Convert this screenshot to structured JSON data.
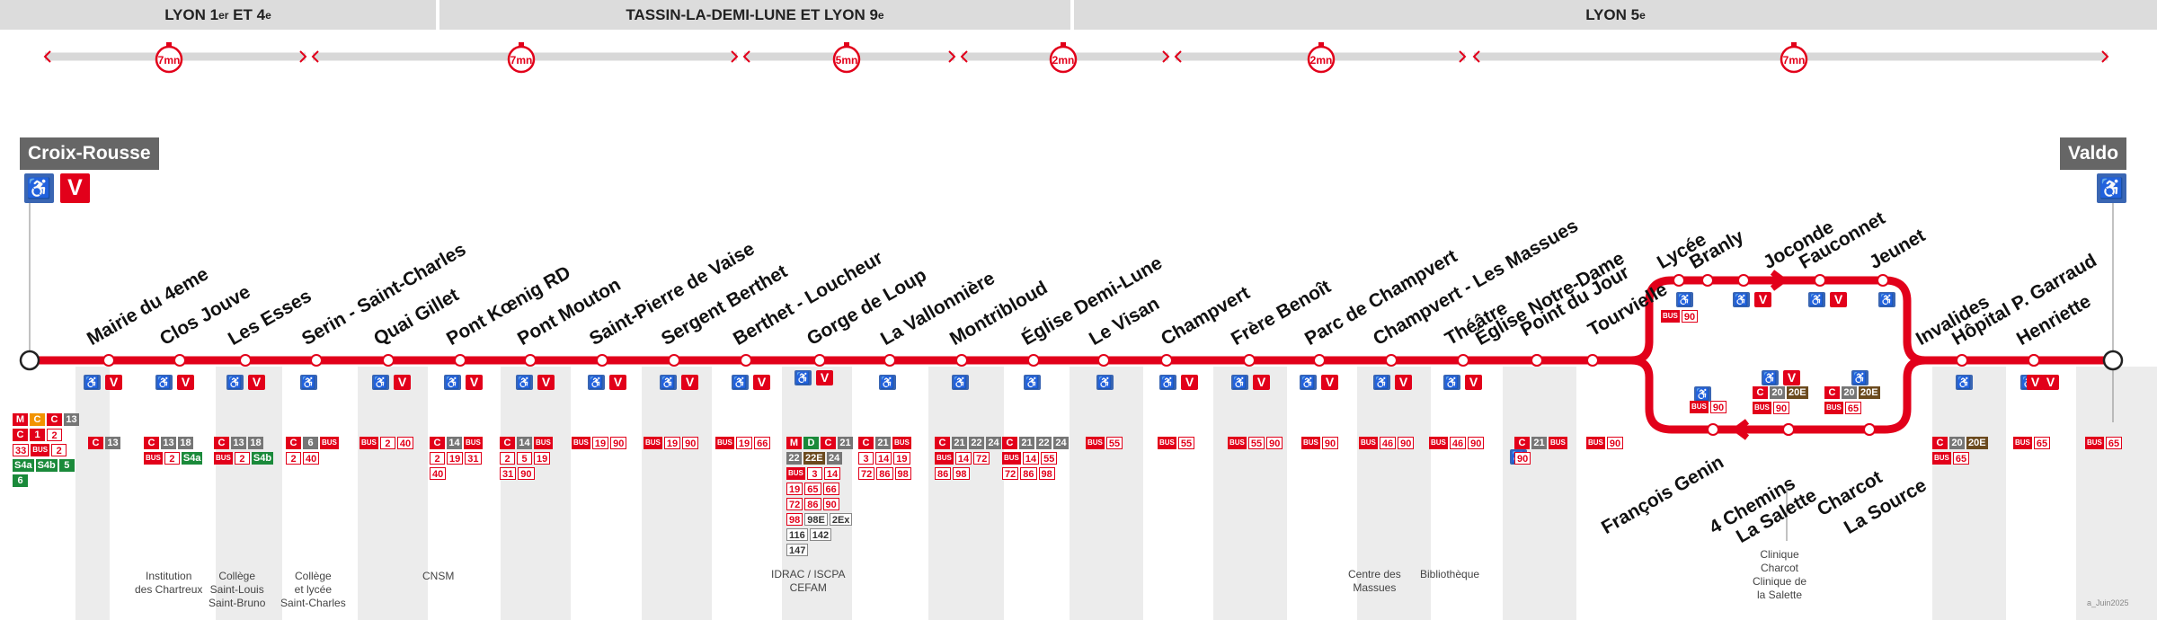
{
  "zones": [
    {
      "label": "LYON 1",
      "sup1": "er",
      "mid": "ET",
      "sup2": "e"
    },
    {
      "label": "TASSIN-LA-DEMI-LUNE ET LYON 9",
      "sup": "e"
    },
    {
      "label": "LYON 5",
      "sup": "e"
    }
  ],
  "travel_times": [
    "7mn",
    "7mn",
    "5mn",
    "2mn",
    "2mn",
    "7mn"
  ],
  "termini": {
    "start": "Croix-Rousse",
    "end": "Valdo"
  },
  "stops": [
    {
      "name": "Mairie du 4eme",
      "pmr": true,
      "velov": true
    },
    {
      "name": "Clos Jouve",
      "pmr": true,
      "velov": true
    },
    {
      "name": "Les Esses",
      "pmr": true,
      "velov": true
    },
    {
      "name": "Serin - Saint-Charles",
      "pmr": true,
      "velov": false
    },
    {
      "name": "Quai Gillet",
      "pmr": true,
      "velov": true
    },
    {
      "name": "Pont Kœnig RD",
      "pmr": true,
      "velov": true
    },
    {
      "name": "Pont Mouton",
      "pmr": true,
      "velov": true
    },
    {
      "name": "Saint-Pierre de Vaise",
      "pmr": true,
      "velov": true
    },
    {
      "name": "Sergent Berthet",
      "pmr": true,
      "velov": true
    },
    {
      "name": "Berthet - Loucheur",
      "pmr": true,
      "velov": true
    },
    {
      "name": "Gorge de Loup",
      "pmr": true,
      "velov": true
    },
    {
      "name": "La Vallonnière",
      "pmr": true,
      "velov": false
    },
    {
      "name": "Montribloud",
      "pmr": true,
      "velov": false
    },
    {
      "name": "Église Demi-Lune",
      "pmr": true,
      "velov": false
    },
    {
      "name": "Le Visan",
      "pmr": true,
      "velov": false
    },
    {
      "name": "Champvert",
      "pmr": true,
      "velov": true
    },
    {
      "name": "Frère Benoît",
      "pmr": true,
      "velov": true
    },
    {
      "name": "Parc de Champvert",
      "pmr": true,
      "velov": true
    },
    {
      "name": "Champvert - Les Massues",
      "pmr": true,
      "velov": true
    },
    {
      "name": "Théâtre",
      "pmr": true,
      "velov": true
    },
    {
      "name": "Église Notre-Dame",
      "pmr": false,
      "velov": false
    },
    {
      "name": "Point du Jour",
      "pmr": true,
      "velov": false
    },
    {
      "name": "Tourvielle",
      "pmr": false,
      "velov": false
    },
    {
      "name": "Lycée",
      "pmr": true,
      "velov": false
    },
    {
      "name": "Branly",
      "pmr": false,
      "velov": false
    },
    {
      "name": "Joconde",
      "pmr": true,
      "velov": true
    },
    {
      "name": "Fauconnet",
      "pmr": true,
      "velov": true
    },
    {
      "name": "Jeunet",
      "pmr": true,
      "velov": false
    },
    {
      "name": "Invalides",
      "pmr": true,
      "velov": false
    },
    {
      "name": "Hôpital P. Garraud",
      "pmr": true,
      "velov": true
    },
    {
      "name": "Henriette",
      "pmr": false,
      "velov": true
    },
    {
      "name": "François Genin",
      "pmr": true,
      "velov": false
    },
    {
      "name": "4 Chemins",
      "pmr": true,
      "velov": true
    },
    {
      "name": "La Salette",
      "pmr": false,
      "velov": false
    },
    {
      "name": "Charcot",
      "pmr": true,
      "velov": false
    },
    {
      "name": "La Source",
      "pmr": false,
      "velov": false
    }
  ],
  "connections": [
    {
      "id": "croix-rousse",
      "tags": [
        [
          "m",
          "M"
        ],
        [
          "o",
          "C"
        ],
        [
          "c",
          "C"
        ],
        [
          "g",
          "13"
        ],
        [
          "c",
          "C"
        ],
        [
          "c",
          "1"
        ],
        [
          "b",
          "2"
        ],
        [
          "b",
          "33"
        ],
        [
          "bus",
          "BUS"
        ],
        [
          "b",
          "2"
        ],
        [
          "s",
          "S4a"
        ],
        [
          "s",
          "S4b"
        ],
        [
          "s",
          "5"
        ],
        [
          "s",
          "6"
        ]
      ]
    },
    {
      "id": "clos-jouve",
      "tags": [
        [
          "c",
          "C"
        ],
        [
          "g",
          "13"
        ]
      ]
    },
    {
      "id": "les-esses",
      "tags": [
        [
          "c",
          "C"
        ],
        [
          "g",
          "13"
        ],
        [
          "g",
          "18"
        ],
        [
          "bus",
          "BUS"
        ],
        [
          "b",
          "2"
        ],
        [
          "s",
          "S4a"
        ]
      ],
      "place": "Institution\ndes Chartreux"
    },
    {
      "id": "serin",
      "tags": [
        [
          "c",
          "C"
        ],
        [
          "g",
          "13"
        ],
        [
          "g",
          "18"
        ],
        [
          "bus",
          "BUS"
        ],
        [
          "b",
          "2"
        ],
        [
          "s",
          "S4b"
        ]
      ],
      "place": "Collège\nSaint-Louis\nSaint-Bruno"
    },
    {
      "id": "quai-gillet",
      "tags": [
        [
          "c",
          "C"
        ],
        [
          "g",
          "6"
        ],
        [
          "bus",
          "BUS"
        ],
        [
          "b",
          "2"
        ],
        [
          "b",
          "40"
        ]
      ],
      "place": "Collège\net lycée\nSaint-Charles"
    },
    {
      "id": "pont-koenig",
      "tags": [
        [
          "bus",
          "BUS"
        ],
        [
          "b",
          "2"
        ],
        [
          "b",
          "40"
        ]
      ]
    },
    {
      "id": "pont-mouton",
      "tags": [
        [
          "c",
          "C"
        ],
        [
          "g",
          "14"
        ],
        [
          "bus",
          "BUS"
        ],
        [
          "b",
          "2"
        ],
        [
          "b",
          "19"
        ],
        [
          "b",
          "31"
        ],
        [
          "b",
          "40"
        ]
      ],
      "place": "CNSM"
    },
    {
      "id": "saint-pierre",
      "tags": [
        [
          "c",
          "C"
        ],
        [
          "g",
          "14"
        ],
        [
          "bus",
          "BUS"
        ],
        [
          "b",
          "2"
        ],
        [
          "b",
          "5"
        ],
        [
          "b",
          "19"
        ],
        [
          "b",
          "31"
        ],
        [
          "b",
          "90"
        ]
      ]
    },
    {
      "id": "sergent-berthet",
      "tags": [
        [
          "bus",
          "BUS"
        ],
        [
          "b",
          "19"
        ],
        [
          "b",
          "90"
        ]
      ]
    },
    {
      "id": "berthet-loucheur",
      "tags": [
        [
          "bus",
          "BUS"
        ],
        [
          "b",
          "19"
        ],
        [
          "b",
          "90"
        ]
      ]
    },
    {
      "id": "gorge-de-loup-a",
      "tags": [
        [
          "bus",
          "BUS"
        ],
        [
          "b",
          "19"
        ],
        [
          "b",
          "66"
        ]
      ]
    },
    {
      "id": "gorge-de-loup",
      "tags": [
        [
          "m",
          "M"
        ],
        [
          "d",
          "D"
        ],
        [
          "c",
          "C"
        ],
        [
          "g",
          "21"
        ],
        [
          "g",
          "22"
        ],
        [
          "e",
          "22E"
        ],
        [
          "g",
          "24"
        ],
        [
          "bus",
          "BUS"
        ],
        [
          "b",
          "3"
        ],
        [
          "b",
          "14"
        ],
        [
          "b",
          "19"
        ],
        [
          "b",
          "65"
        ],
        [
          "b",
          "66"
        ],
        [
          "b",
          "72"
        ],
        [
          "b",
          "86"
        ],
        [
          "b",
          "90"
        ],
        [
          "b",
          "98"
        ],
        [
          "k",
          "98E"
        ],
        [
          "k",
          "2Ex"
        ],
        [
          "k",
          "116"
        ],
        [
          "k",
          "142"
        ],
        [
          "k",
          "147"
        ]
      ],
      "place": "IDRAC / ISCPA\nCEFAM"
    },
    {
      "id": "vallonniere",
      "tags": [
        [
          "c",
          "C"
        ],
        [
          "g",
          "21"
        ],
        [
          "bus",
          "BUS"
        ],
        [
          "b",
          "3"
        ],
        [
          "b",
          "14"
        ],
        [
          "b",
          "19"
        ],
        [
          "b",
          "72"
        ],
        [
          "b",
          "86"
        ],
        [
          "b",
          "98"
        ]
      ]
    },
    {
      "id": "montribloud",
      "tags": [
        [
          "c",
          "C"
        ],
        [
          "g",
          "21"
        ],
        [
          "g",
          "22"
        ],
        [
          "g",
          "24"
        ],
        [
          "bus",
          "BUS"
        ],
        [
          "b",
          "14"
        ],
        [
          "b",
          "72"
        ],
        [
          "b",
          "86"
        ],
        [
          "b",
          "98"
        ]
      ]
    },
    {
      "id": "eglise-demi-lune",
      "tags": [
        [
          "c",
          "C"
        ],
        [
          "g",
          "21"
        ],
        [
          "g",
          "22"
        ],
        [
          "g",
          "24"
        ],
        [
          "bus",
          "BUS"
        ],
        [
          "b",
          "14"
        ],
        [
          "b",
          "55"
        ],
        [
          "b",
          "72"
        ],
        [
          "b",
          "86"
        ],
        [
          "b",
          "98"
        ]
      ]
    },
    {
      "id": "le-visan",
      "tags": [
        [
          "bus",
          "BUS"
        ],
        [
          "b",
          "55"
        ]
      ]
    },
    {
      "id": "champvert",
      "tags": [
        [
          "bus",
          "BUS"
        ],
        [
          "b",
          "55"
        ]
      ]
    },
    {
      "id": "frere-benoit",
      "tags": [
        [
          "bus",
          "BUS"
        ],
        [
          "b",
          "55"
        ],
        [
          "b",
          "90"
        ]
      ]
    },
    {
      "id": "parc-champvert",
      "tags": [
        [
          "bus",
          "BUS"
        ],
        [
          "b",
          "90"
        ]
      ]
    },
    {
      "id": "champvert-massues",
      "tags": [
        [
          "bus",
          "BUS"
        ],
        [
          "b",
          "46"
        ],
        [
          "b",
          "90"
        ]
      ],
      "place": "Centre des\nMassues"
    },
    {
      "id": "theatre",
      "tags": [
        [
          "bus",
          "BUS"
        ],
        [
          "b",
          "46"
        ],
        [
          "b",
          "90"
        ]
      ],
      "place": "Bibliothèque"
    },
    {
      "id": "point-du-jour",
      "tags": [
        [
          "c",
          "C"
        ],
        [
          "g",
          "21"
        ],
        [
          "bus",
          "BUS"
        ],
        [
          "b",
          "90"
        ]
      ]
    },
    {
      "id": "tourvielle",
      "tags": [
        [
          "bus",
          "BUS"
        ],
        [
          "b",
          "90"
        ]
      ]
    },
    {
      "id": "lycee",
      "tags": [
        [
          "bus",
          "BUS"
        ],
        [
          "b",
          "90"
        ]
      ]
    },
    {
      "id": "genin",
      "tags": [
        [
          "bus",
          "BUS"
        ],
        [
          "b",
          "90"
        ]
      ]
    },
    {
      "id": "4-chemins",
      "tags": [
        [
          "c",
          "C"
        ],
        [
          "g",
          "20"
        ],
        [
          "e",
          "20E"
        ],
        [
          "bus",
          "BUS"
        ],
        [
          "b",
          "90"
        ]
      ],
      "place": "Clinique\nCharcot\nClinique de\nla Salette"
    },
    {
      "id": "charcot",
      "tags": [
        [
          "c",
          "C"
        ],
        [
          "g",
          "20"
        ],
        [
          "e",
          "20E"
        ],
        [
          "bus",
          "BUS"
        ],
        [
          "b",
          "65"
        ]
      ]
    },
    {
      "id": "invalides",
      "tags": [
        [
          "c",
          "C"
        ],
        [
          "g",
          "20"
        ],
        [
          "e",
          "20E"
        ],
        [
          "bus",
          "BUS"
        ],
        [
          "b",
          "65"
        ]
      ]
    },
    {
      "id": "garraud",
      "tags": [
        [
          "bus",
          "BUS"
        ],
        [
          "b",
          "65"
        ]
      ]
    },
    {
      "id": "valdo",
      "tags": [
        [
          "bus",
          "BUS"
        ],
        [
          "b",
          "65"
        ]
      ]
    }
  ],
  "credit": "a_Juin2025",
  "colors": {
    "line": "#e2001a",
    "accessible": "#3a66b3",
    "zone": "#dcdcdc",
    "band": "#ececec",
    "terminus": "#666666"
  }
}
